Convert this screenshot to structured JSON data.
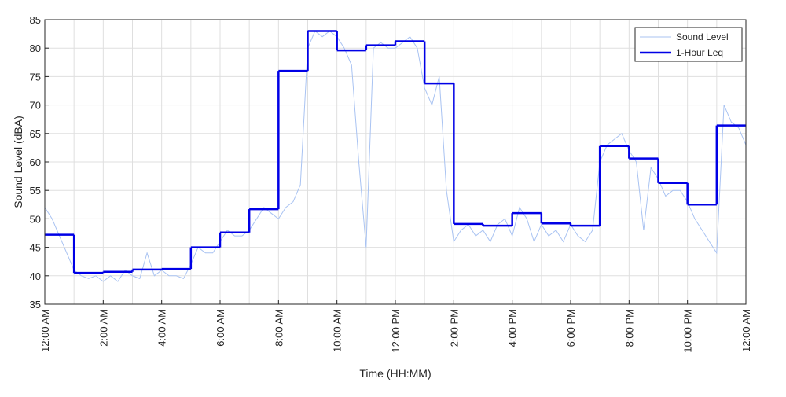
{
  "chart_data": {
    "type": "line",
    "xlabel": "Time (HH:MM)",
    "ylabel": "Sound Level (dBA)",
    "xlim": [
      0,
      24
    ],
    "ylim": [
      35,
      85
    ],
    "xticks": [
      {
        "value": 0,
        "label": "12:00 AM"
      },
      {
        "value": 2,
        "label": "2:00 AM"
      },
      {
        "value": 4,
        "label": "4:00 AM"
      },
      {
        "value": 6,
        "label": "6:00 AM"
      },
      {
        "value": 8,
        "label": "8:00 AM"
      },
      {
        "value": 10,
        "label": "10:00 AM"
      },
      {
        "value": 12,
        "label": "12:00 PM"
      },
      {
        "value": 14,
        "label": "2:00 PM"
      },
      {
        "value": 16,
        "label": "4:00 PM"
      },
      {
        "value": 18,
        "label": "6:00 PM"
      },
      {
        "value": 20,
        "label": "8:00 PM"
      },
      {
        "value": 22,
        "label": "10:00 PM"
      },
      {
        "value": 24,
        "label": "12:00 AM"
      }
    ],
    "xminor": [
      1,
      3,
      5,
      7,
      9,
      11,
      13,
      15,
      17,
      19,
      21,
      23
    ],
    "yticks": [
      35,
      40,
      45,
      50,
      55,
      60,
      65,
      70,
      75,
      80,
      85
    ],
    "grid": true,
    "legend": "upper right",
    "series": [
      {
        "name": "Sound Level",
        "color": "#a9c3f2",
        "style": "line",
        "x": [
          0,
          0.25,
          0.5,
          0.75,
          1,
          1.25,
          1.5,
          1.75,
          2,
          2.25,
          2.5,
          2.75,
          3,
          3.25,
          3.5,
          3.75,
          4,
          4.25,
          4.5,
          4.75,
          5,
          5.25,
          5.5,
          5.75,
          6,
          6.25,
          6.5,
          6.75,
          7,
          7.25,
          7.5,
          7.75,
          8,
          8.25,
          8.5,
          8.75,
          9,
          9.25,
          9.5,
          9.75,
          10,
          10.25,
          10.5,
          10.75,
          11,
          11.25,
          11.5,
          11.75,
          12,
          12.25,
          12.5,
          12.75,
          13,
          13.25,
          13.5,
          13.75,
          14,
          14.25,
          14.5,
          14.75,
          15,
          15.25,
          15.5,
          15.75,
          16,
          16.25,
          16.5,
          16.75,
          17,
          17.25,
          17.5,
          17.75,
          18,
          18.25,
          18.5,
          18.75,
          19,
          19.25,
          19.5,
          19.75,
          20,
          20.25,
          20.5,
          20.75,
          21,
          21.25,
          21.5,
          21.75,
          22,
          22.25,
          22.5,
          22.75,
          23,
          23.25,
          23.5,
          23.75,
          24
        ],
        "values": [
          52,
          50,
          47,
          44,
          41,
          40,
          39.5,
          40,
          39,
          40,
          39,
          41,
          40,
          39.5,
          44,
          40,
          41,
          40,
          40,
          39.5,
          42,
          45,
          44,
          44,
          46,
          48,
          47,
          47,
          48,
          50,
          52,
          51,
          50,
          52,
          53,
          56,
          80,
          83,
          82,
          83,
          82,
          80,
          77,
          60,
          45,
          80,
          81,
          80,
          80,
          81,
          82,
          80,
          73,
          70,
          75,
          55,
          46,
          48,
          49,
          47,
          48,
          46,
          49,
          50,
          47,
          52,
          50,
          46,
          49,
          47,
          48,
          46,
          49,
          47,
          46,
          48,
          60,
          63,
          64,
          65,
          62,
          60,
          48,
          59,
          57,
          54,
          55,
          55,
          53,
          50,
          48,
          46,
          44,
          70,
          67,
          66,
          63
        ]
      },
      {
        "name": "1-Hour Leq",
        "color": "#0000e6",
        "style": "step",
        "x": [
          0,
          1,
          2,
          3,
          4,
          5,
          6,
          7,
          8,
          9,
          10,
          11,
          12,
          13,
          14,
          15,
          16,
          17,
          18,
          19,
          20,
          21,
          22,
          23
        ],
        "values": [
          47.2,
          40.5,
          40.7,
          41.1,
          41.2,
          45.0,
          47.6,
          51.7,
          76.0,
          83.0,
          79.6,
          80.5,
          81.2,
          73.8,
          49.1,
          48.8,
          51.0,
          49.2,
          48.8,
          62.8,
          60.6,
          56.3,
          52.5,
          66.4
        ]
      }
    ]
  }
}
